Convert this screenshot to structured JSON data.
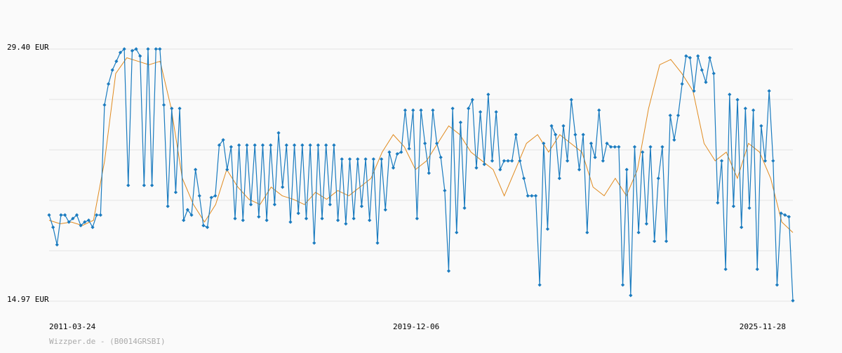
{
  "chart_data": {
    "type": "line",
    "yticks": [
      {
        "value": 29.4,
        "label": "29.40 EUR"
      },
      {
        "value": 14.97,
        "label": "14.97 EUR"
      }
    ],
    "ylim": [
      14.97,
      29.4
    ],
    "ygrid": [
      29.4,
      26.514,
      23.628,
      20.742,
      17.856,
      14.97
    ],
    "xlim": [
      "2011-03-24",
      "2025-11-28"
    ],
    "xticks": [
      "2011-03-24",
      "2019-12-06",
      "2025-11-28"
    ],
    "footer": "Wizzper.de - (B0014GRSBI)",
    "series": [
      {
        "color": "#1a7bbf",
        "markers": true,
        "values": [
          19.9,
          19.2,
          18.2,
          19.9,
          19.9,
          19.5,
          19.7,
          19.9,
          19.3,
          19.5,
          19.6,
          19.2,
          19.9,
          19.9,
          26.2,
          27.4,
          28.2,
          28.7,
          29.2,
          29.4,
          21.6,
          29.3,
          29.4,
          29.0,
          21.6,
          29.4,
          21.6,
          29.4,
          29.4,
          26.2,
          20.4,
          26.0,
          21.2,
          26.0,
          19.6,
          20.2,
          19.9,
          22.5,
          21.0,
          19.3,
          19.2,
          20.9,
          21.0,
          23.9,
          24.2,
          22.5,
          23.8,
          19.7,
          23.9,
          19.6,
          23.9,
          20.5,
          23.9,
          19.8,
          23.9,
          19.6,
          23.9,
          20.5,
          24.6,
          21.5,
          23.9,
          19.5,
          23.9,
          20.0,
          23.9,
          19.7,
          23.9,
          18.3,
          23.9,
          19.7,
          23.9,
          20.5,
          23.9,
          19.6,
          23.1,
          19.4,
          23.1,
          19.7,
          23.1,
          20.4,
          23.1,
          19.6,
          23.1,
          18.3,
          23.1,
          20.2,
          23.5,
          22.6,
          23.4,
          23.5,
          25.9,
          23.7,
          25.9,
          19.7,
          25.9,
          24.0,
          22.3,
          25.9,
          24.0,
          23.2,
          21.3,
          16.7,
          26.0,
          18.9,
          25.2,
          20.3,
          26.0,
          26.5,
          22.6,
          25.8,
          22.8,
          26.8,
          23.0,
          25.8,
          22.5,
          23.0,
          23.0,
          23.0,
          24.5,
          23.0,
          22.0,
          21.0,
          21.0,
          21.0,
          15.9,
          24.0,
          19.1,
          25.0,
          24.5,
          22.0,
          25.0,
          23.0,
          26.5,
          24.5,
          22.5,
          24.5,
          18.9,
          24.0,
          23.2,
          25.9,
          23.0,
          24.0,
          23.8,
          23.8,
          23.8,
          15.9,
          22.5,
          15.3,
          23.8,
          18.9,
          23.5,
          19.4,
          23.8,
          18.4,
          22.0,
          23.8,
          18.4,
          25.6,
          24.2,
          25.6,
          27.4,
          29.0,
          28.9,
          27.0,
          29.0,
          28.2,
          27.5,
          28.9,
          28.0,
          20.6,
          23.0,
          16.8,
          26.8,
          20.4,
          26.5,
          19.2,
          26.0,
          20.3,
          25.9,
          16.8,
          25.0,
          23.0,
          27.0,
          23.0,
          15.9,
          20.0,
          19.9,
          19.8,
          15.0
        ]
      },
      {
        "color": "#e08a1e",
        "markers": false,
        "values": [
          19.6,
          19.4,
          19.5,
          19.3,
          19.6,
          23.0,
          28.0,
          28.9,
          28.7,
          28.5,
          28.7,
          26.0,
          22.0,
          20.5,
          19.5,
          20.5,
          22.5,
          21.5,
          20.8,
          20.5,
          21.5,
          21.0,
          20.8,
          20.5,
          21.2,
          20.8,
          21.3,
          21.0,
          21.5,
          22.0,
          23.5,
          24.5,
          23.8,
          22.5,
          23.0,
          24.0,
          25.0,
          24.5,
          23.5,
          23.0,
          22.5,
          21.0,
          22.5,
          24.0,
          24.5,
          23.5,
          24.5,
          24.0,
          23.5,
          21.5,
          21.0,
          22.0,
          21.0,
          22.5,
          26.0,
          28.5,
          28.8,
          28.0,
          27.0,
          24.0,
          23.0,
          23.5,
          22.0,
          24.0,
          23.5,
          22.0,
          19.5,
          18.9
        ]
      }
    ]
  }
}
